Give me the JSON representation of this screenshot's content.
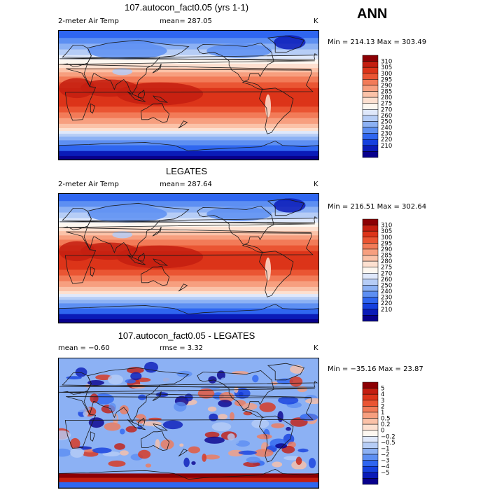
{
  "season": "ANN",
  "palettes": {
    "abs": [
      "#08008c",
      "#0a1bb8",
      "#1540de",
      "#2f66f0",
      "#5d8ff2",
      "#8cb1f4",
      "#b6cdf6",
      "#dfe8fb",
      "#fdf7f0",
      "#fde0d0",
      "#fbc2a8",
      "#f79f7f",
      "#f27b58",
      "#ea5533",
      "#dc3419",
      "#c41e10",
      "#8c0004"
    ],
    "diff": [
      "#08008c",
      "#0a1bb8",
      "#1540de",
      "#2f66f0",
      "#5d8ff2",
      "#8cb1f4",
      "#b6cdf6",
      "#dfe8fb",
      "#fdf7f0",
      "#fde0d0",
      "#fbc2a8",
      "#f79f7f",
      "#f27b58",
      "#ea5533",
      "#dc3419",
      "#c41e10",
      "#8c0004"
    ]
  },
  "panels": [
    {
      "title": "107.autocon_fact0.05 (yrs 1-1)",
      "variable": "2-meter Air Temp",
      "stat1": "mean= 287.05",
      "stat2": "",
      "units": "K",
      "minmax": "Min = 214.13 Max = 303.49",
      "chart_data": {
        "type": "heatmap",
        "levels": [
          "310",
          "305",
          "300",
          "295",
          "290",
          "285",
          "280",
          "275",
          "270",
          "260",
          "250",
          "240",
          "230",
          "220",
          "210"
        ],
        "mean": 287.05,
        "min": 214.13,
        "max": 303.49
      }
    },
    {
      "title": "LEGATES",
      "variable": "2-meter Air Temp",
      "stat1": "mean= 287.64",
      "stat2": "",
      "units": "K",
      "minmax": "Min = 216.51 Max = 302.64",
      "chart_data": {
        "type": "heatmap",
        "levels": [
          "310",
          "305",
          "300",
          "295",
          "290",
          "285",
          "280",
          "275",
          "270",
          "260",
          "250",
          "240",
          "230",
          "220",
          "210"
        ],
        "mean": 287.64,
        "min": 216.51,
        "max": 302.64
      }
    },
    {
      "title": "107.autocon_fact0.05 - LEGATES",
      "variable": "",
      "stat1": "mean =  −0.60",
      "stat2": "rmse =   3.32",
      "units": "K",
      "minmax": "Min = −35.16 Max =  23.87",
      "chart_data": {
        "type": "heatmap",
        "levels": [
          "5",
          "4",
          "3",
          "2",
          "1",
          "0.5",
          "0.2",
          "0",
          "−0.2",
          "−0.5",
          "−1",
          "−2",
          "−3",
          "−4",
          "−5"
        ],
        "mean": -0.6,
        "rmse": 3.32,
        "min": -35.16,
        "max": 23.87
      }
    }
  ]
}
